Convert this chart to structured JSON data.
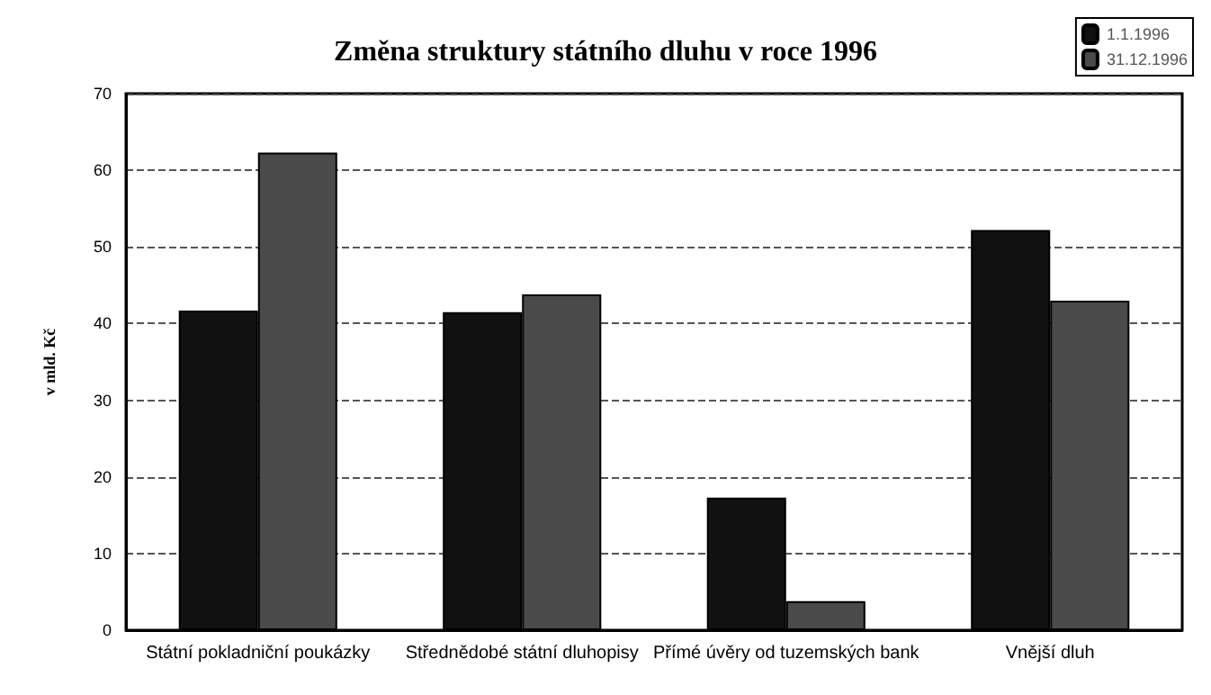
{
  "chart_data": {
    "type": "bar",
    "title": "Změna struktury státního dluhu v roce 1996",
    "ylabel": "v mld. Kč",
    "categories": [
      "Státní pokladniční poukázky",
      "Střednědobé státní dluhopisy",
      "Přímé úvěry od tuzemských bank",
      "Vnější dluh"
    ],
    "series": [
      {
        "name": "1.1.1996",
        "color": "#111111",
        "values": [
          41.7,
          41.5,
          17.3,
          52.2
        ]
      },
      {
        "name": "31.12.1996",
        "color": "#4a4a4a",
        "values": [
          62.3,
          43.8,
          3.8,
          43.0
        ]
      }
    ],
    "ylim": [
      0,
      70
    ],
    "yticks": [
      0,
      10,
      20,
      30,
      40,
      50,
      60,
      70
    ],
    "grid": "y",
    "legend": "top right",
    "line_style": "dashed"
  }
}
